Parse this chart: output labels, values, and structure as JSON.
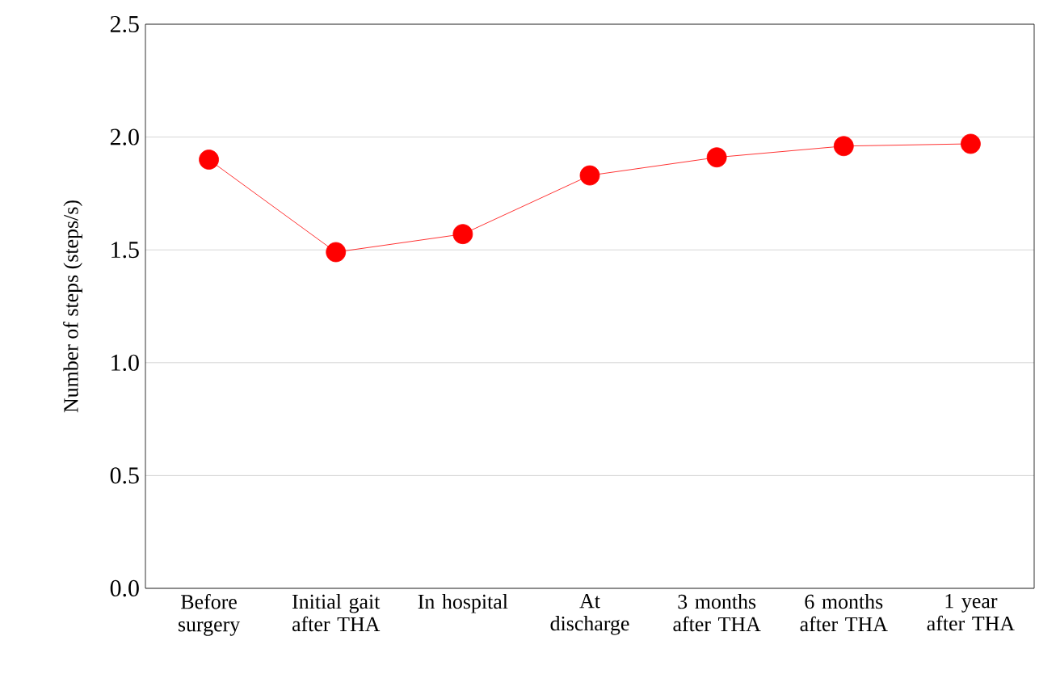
{
  "chart_data": {
    "type": "line",
    "ylabel": "Number of steps (steps/s)",
    "categories": [
      "Before surgery",
      "Initial gait after THA",
      "In hospital",
      "At discharge",
      "3 months after THA",
      "6 months after THA",
      "1 year after THA"
    ],
    "values": [
      1.9,
      1.49,
      1.57,
      1.83,
      1.91,
      1.96,
      1.97
    ],
    "color": "#ff0000",
    "marker": "circle",
    "line_style": "solid",
    "grid": "y",
    "ylim": [
      0,
      2.5
    ],
    "yticks": [
      {
        "value": 0,
        "label": "0.0"
      },
      {
        "value": 0.5,
        "label": "0.5"
      },
      {
        "value": 1,
        "label": "1.0"
      },
      {
        "value": 1.5,
        "label": "1.5"
      },
      {
        "value": 2,
        "label": "2.0"
      },
      {
        "value": 2.5,
        "label": "2.5"
      }
    ]
  }
}
